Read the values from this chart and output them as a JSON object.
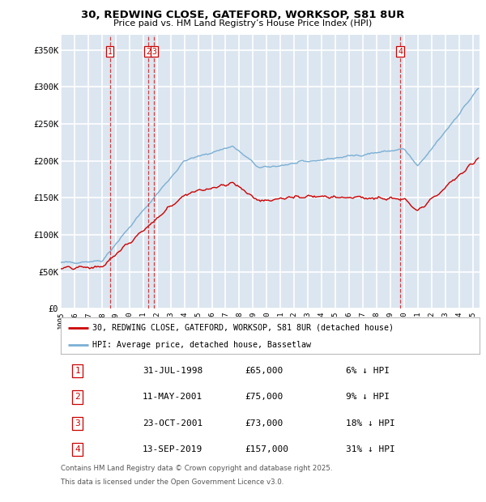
{
  "title_line1": "30, REDWING CLOSE, GATEFORD, WORKSOP, S81 8UR",
  "title_line2": "Price paid vs. HM Land Registry’s House Price Index (HPI)",
  "ylim": [
    0,
    370000
  ],
  "yticks": [
    0,
    50000,
    100000,
    150000,
    200000,
    250000,
    300000,
    350000
  ],
  "ytick_labels": [
    "£0",
    "£50K",
    "£100K",
    "£150K",
    "£200K",
    "£250K",
    "£300K",
    "£350K"
  ],
  "background_color": "#dce6f0",
  "red_line_color": "#cc0000",
  "blue_line_color": "#7aafd4",
  "grid_color": "#ffffff",
  "transactions": [
    {
      "num": 1,
      "date": "31-JUL-1998",
      "price": 65000,
      "year_f": 1998.58,
      "label": "1",
      "pct": "6%"
    },
    {
      "num": 2,
      "date": "11-MAY-2001",
      "price": 75000,
      "year_f": 2001.37,
      "label": "2",
      "pct": "9%"
    },
    {
      "num": 3,
      "date": "23-OCT-2001",
      "price": 73000,
      "year_f": 2001.81,
      "label": "3",
      "pct": "18%"
    },
    {
      "num": 4,
      "date": "13-SEP-2019",
      "price": 157000,
      "year_f": 2019.71,
      "label": "4",
      "pct": "31%"
    }
  ],
  "legend_entries": [
    "30, REDWING CLOSE, GATEFORD, WORKSOP, S81 8UR (detached house)",
    "HPI: Average price, detached house, Bassetlaw"
  ],
  "footnote_line1": "Contains HM Land Registry data © Crown copyright and database right 2025.",
  "footnote_line2": "This data is licensed under the Open Government Licence v3.0.",
  "xmin": 1995.0,
  "xmax": 2025.5
}
